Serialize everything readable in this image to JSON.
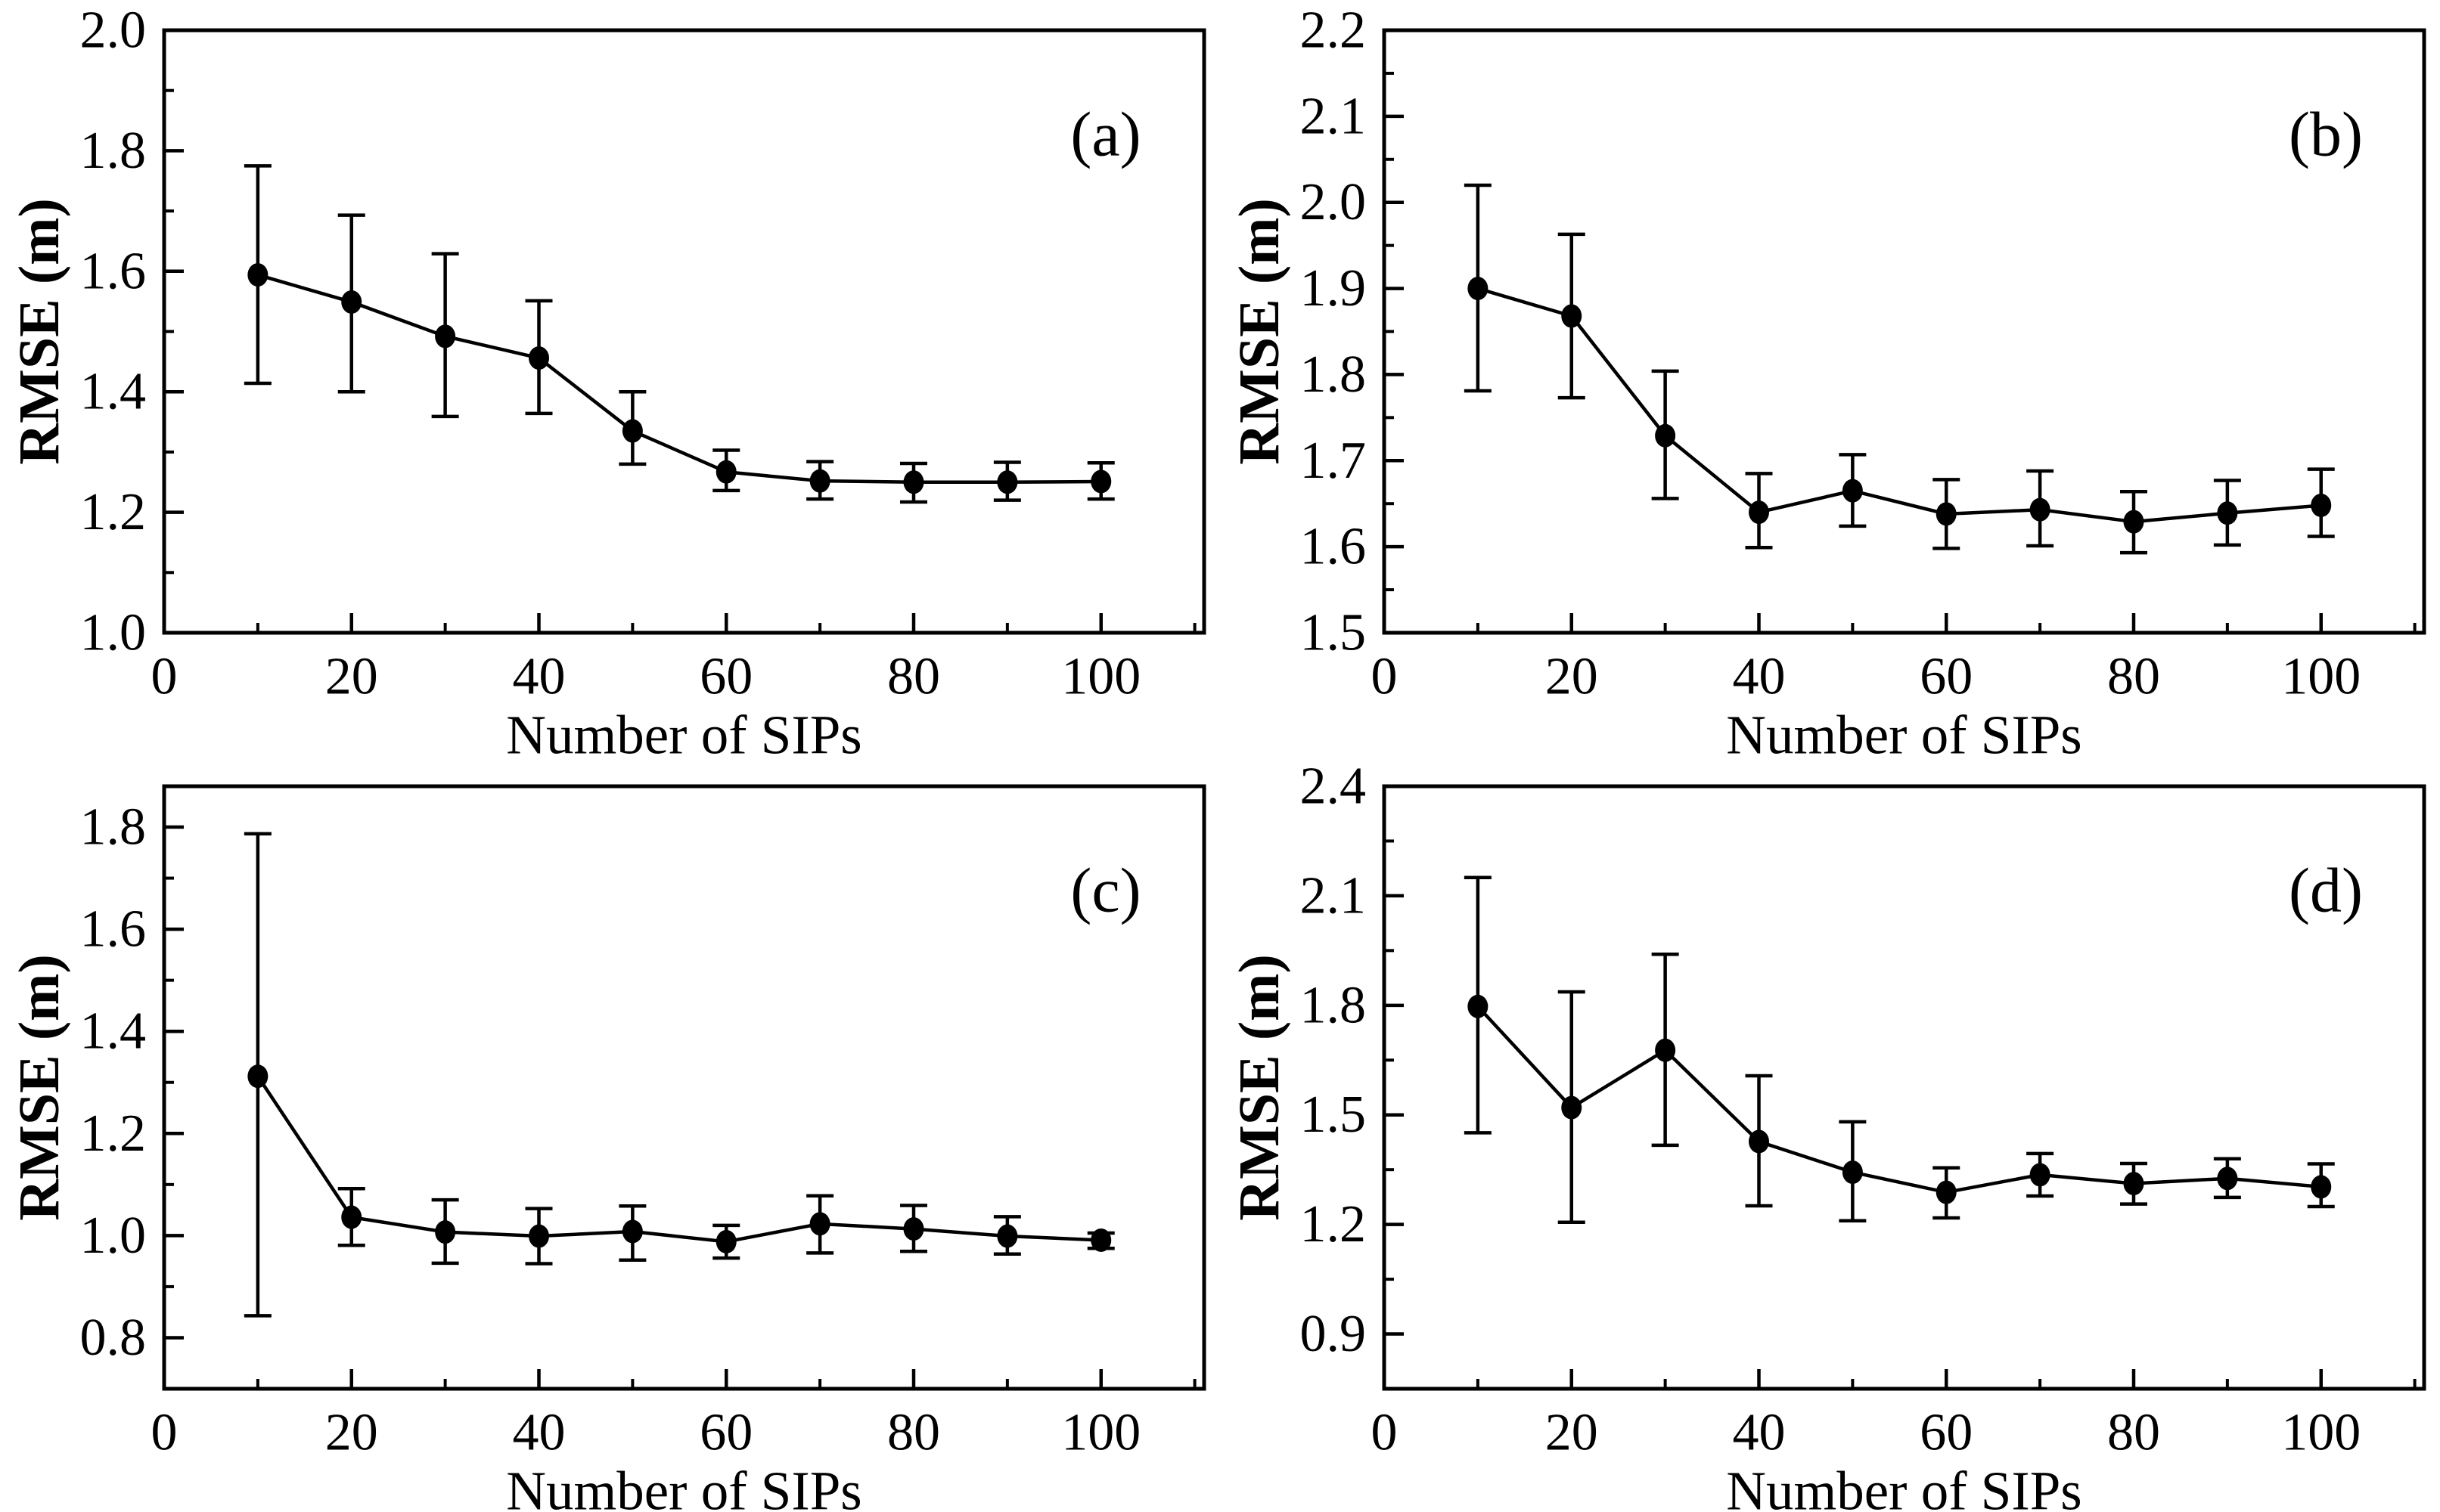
{
  "figure": {
    "background": "#ffffff",
    "foreground": "#000000",
    "xlabel": "Number of SIPs",
    "ylabel": "RMSE (m)",
    "panel_letters": [
      "(a)",
      "(b)",
      "(c)",
      "(d)"
    ]
  },
  "chart_data": [
    {
      "type": "line",
      "panel_label": "(a)",
      "title": "",
      "xlabel": "Number of SIPs",
      "ylabel": "RMSE (m)",
      "legend": null,
      "grid": false,
      "error_bars": true,
      "marker": "filled-circle",
      "color": "#000000",
      "x": [
        10,
        20,
        30,
        40,
        50,
        60,
        70,
        80,
        90,
        100
      ],
      "y": [
        1.594,
        1.549,
        1.492,
        1.456,
        1.335,
        1.267,
        1.252,
        1.25,
        1.25,
        1.251
      ],
      "y_upper": [
        1.775,
        1.693,
        1.629,
        1.551,
        1.4,
        1.303,
        1.284,
        1.281,
        1.283,
        1.282
      ],
      "y_lower": [
        1.414,
        1.4,
        1.359,
        1.364,
        1.28,
        1.236,
        1.222,
        1.217,
        1.22,
        1.222
      ],
      "xlim": [
        0,
        111
      ],
      "ylim": [
        1.0,
        2.0
      ],
      "xticks_major": [
        0,
        20,
        40,
        60,
        80,
        100
      ],
      "xticks_minor": [
        10,
        30,
        50,
        70,
        90,
        110
      ],
      "yticks_major": [
        1.0,
        1.2,
        1.4,
        1.6,
        1.8,
        2.0
      ],
      "yticks_minor": [
        1.1,
        1.3,
        1.5,
        1.7,
        1.9
      ],
      "ytick_decimals": 1
    },
    {
      "type": "line",
      "panel_label": "(b)",
      "title": "",
      "xlabel": "Number of SIPs",
      "ylabel": "RMSE (m)",
      "legend": null,
      "grid": false,
      "error_bars": true,
      "marker": "filled-circle",
      "color": "#000000",
      "x": [
        10,
        20,
        30,
        40,
        50,
        60,
        70,
        80,
        90,
        100
      ],
      "y": [
        1.9,
        1.868,
        1.729,
        1.64,
        1.665,
        1.638,
        1.643,
        1.629,
        1.639,
        1.648
      ],
      "y_upper": [
        2.02,
        1.963,
        1.804,
        1.685,
        1.707,
        1.678,
        1.688,
        1.664,
        1.677,
        1.69
      ],
      "y_lower": [
        1.781,
        1.773,
        1.656,
        1.599,
        1.624,
        1.598,
        1.601,
        1.593,
        1.602,
        1.612
      ],
      "xlim": [
        0,
        111
      ],
      "ylim": [
        1.5,
        2.2
      ],
      "xticks_major": [
        0,
        20,
        40,
        60,
        80,
        100
      ],
      "xticks_minor": [
        10,
        30,
        50,
        70,
        90,
        110
      ],
      "yticks_major": [
        1.5,
        1.6,
        1.7,
        1.8,
        1.9,
        2.0,
        2.1,
        2.2
      ],
      "yticks_minor": [
        1.55,
        1.65,
        1.75,
        1.85,
        1.95,
        2.05,
        2.15
      ],
      "ytick_decimals": 1
    },
    {
      "type": "line",
      "panel_label": "(c)",
      "title": "",
      "xlabel": "Number of SIPs",
      "ylabel": "RMSE (m)",
      "legend": null,
      "grid": false,
      "error_bars": true,
      "marker": "filled-circle",
      "color": "#000000",
      "x": [
        10,
        20,
        30,
        40,
        50,
        60,
        70,
        80,
        90,
        100
      ],
      "y": [
        1.312,
        1.036,
        1.007,
        0.999,
        1.008,
        0.988,
        1.023,
        1.013,
        0.999,
        0.991
      ],
      "y_upper": [
        1.787,
        1.092,
        1.07,
        1.053,
        1.058,
        1.02,
        1.078,
        1.059,
        1.037,
        1.005
      ],
      "y_lower": [
        0.843,
        0.981,
        0.946,
        0.945,
        0.952,
        0.956,
        0.966,
        0.969,
        0.964,
        0.975
      ],
      "xlim": [
        0,
        111
      ],
      "ylim": [
        0.7,
        1.88
      ],
      "xticks_major": [
        0,
        20,
        40,
        60,
        80,
        100
      ],
      "xticks_minor": [
        10,
        30,
        50,
        70,
        90,
        110
      ],
      "yticks_major": [
        0.8,
        1.0,
        1.2,
        1.4,
        1.6,
        1.8
      ],
      "yticks_minor": [
        0.9,
        1.1,
        1.3,
        1.5,
        1.7
      ],
      "ytick_decimals": 1
    },
    {
      "type": "line",
      "panel_label": "(d)",
      "title": "",
      "xlabel": "Number of SIPs",
      "ylabel": "RMSE (m)",
      "legend": null,
      "grid": false,
      "error_bars": true,
      "marker": "filled-circle",
      "color": "#000000",
      "x": [
        10,
        20,
        30,
        40,
        50,
        60,
        70,
        80,
        90,
        100
      ],
      "y": [
        1.797,
        1.52,
        1.677,
        1.427,
        1.343,
        1.288,
        1.336,
        1.312,
        1.326,
        1.303
      ],
      "y_upper": [
        2.15,
        1.837,
        1.94,
        1.607,
        1.481,
        1.355,
        1.394,
        1.367,
        1.38,
        1.366
      ],
      "y_lower": [
        1.451,
        1.206,
        1.417,
        1.251,
        1.21,
        1.218,
        1.278,
        1.256,
        1.274,
        1.249
      ],
      "xlim": [
        0,
        111
      ],
      "ylim": [
        0.75,
        2.4
      ],
      "xticks_major": [
        0,
        20,
        40,
        60,
        80,
        100
      ],
      "xticks_minor": [
        10,
        30,
        50,
        70,
        90,
        110
      ],
      "yticks_major": [
        0.9,
        1.2,
        1.5,
        1.8,
        2.1,
        2.4
      ],
      "yticks_minor": [
        1.05,
        1.35,
        1.65,
        1.95,
        2.25
      ],
      "ytick_decimals": 1
    }
  ]
}
